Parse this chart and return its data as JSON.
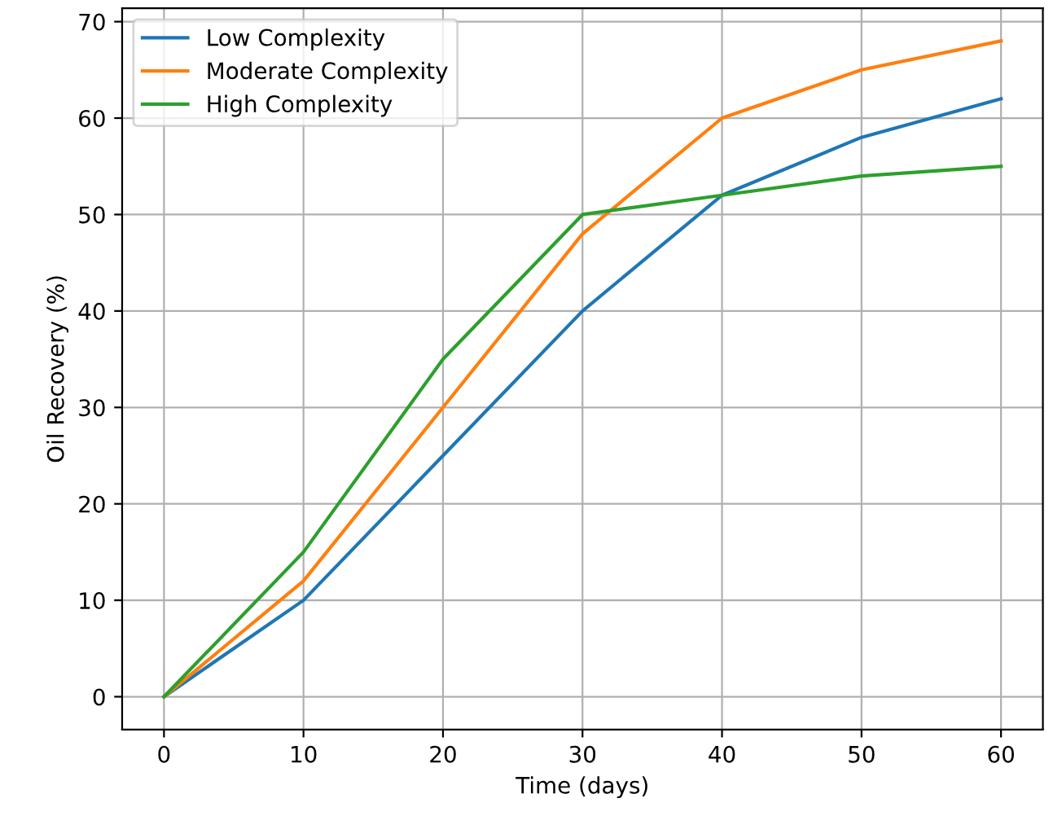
{
  "chart_data": {
    "type": "line",
    "xlabel": "Time (days)",
    "ylabel": "Oil Recovery (%)",
    "x": [
      0,
      10,
      20,
      30,
      40,
      50,
      60
    ],
    "series": [
      {
        "name": "Low Complexity",
        "color": "#1f77b4",
        "values": [
          0,
          10,
          25,
          40,
          52,
          58,
          62
        ]
      },
      {
        "name": "Moderate Complexity",
        "color": "#ff7f0e",
        "values": [
          0,
          12,
          30,
          48,
          60,
          65,
          68
        ]
      },
      {
        "name": "High Complexity",
        "color": "#2ca02c",
        "values": [
          0,
          15,
          35,
          50,
          52,
          54,
          55
        ]
      }
    ],
    "xlim": [
      -3,
      63
    ],
    "ylim": [
      -3.4,
      71.4
    ],
    "xticks": [
      0,
      10,
      20,
      30,
      40,
      50,
      60
    ],
    "yticks": [
      0,
      10,
      20,
      30,
      40,
      50,
      60,
      70
    ],
    "grid": true,
    "legend": "top left"
  }
}
